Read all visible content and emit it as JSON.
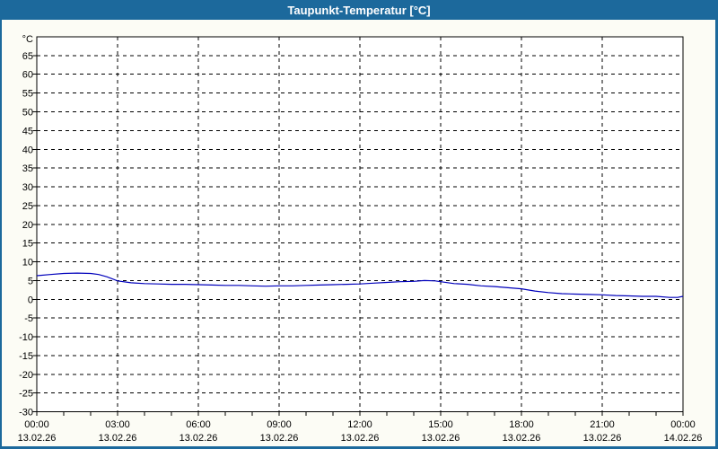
{
  "window": {
    "title": "Taupunkt-Temperatur [°C]",
    "title_bar_color": "#1C699C",
    "border_color": "#1C699C",
    "background_color": "#FCFCF5"
  },
  "chart_data": {
    "type": "line",
    "title": "Taupunkt-Temperatur [°C]",
    "y_unit_label": "°C",
    "xlabel": "",
    "ylabel": "",
    "ylim": [
      -30,
      70
    ],
    "y_tick_step": 5,
    "y_ticks": [
      65,
      60,
      55,
      50,
      45,
      40,
      35,
      30,
      25,
      20,
      15,
      10,
      5,
      0,
      -5,
      -10,
      -15,
      -20,
      -25,
      -30
    ],
    "x_span_hours": 24,
    "x_major_step_hours": 3,
    "x_minor_step_hours": 1,
    "x_tick_labels": [
      {
        "time": "00:00",
        "date": "13.02.26"
      },
      {
        "time": "03:00",
        "date": "13.02.26"
      },
      {
        "time": "06:00",
        "date": "13.02.26"
      },
      {
        "time": "09:00",
        "date": "13.02.26"
      },
      {
        "time": "12:00",
        "date": "13.02.26"
      },
      {
        "time": "15:00",
        "date": "13.02.26"
      },
      {
        "time": "18:00",
        "date": "13.02.26"
      },
      {
        "time": "21:00",
        "date": "13.02.26"
      },
      {
        "time": "00:00",
        "date": "14.02.26"
      }
    ],
    "grid": "dashed",
    "grid_color": "#000000",
    "plot_background": "#FFFFFF",
    "line_color": "#0000BB",
    "legend": "none",
    "series": [
      {
        "name": "Taupunkt-Temperatur",
        "points": [
          [
            0,
            6.3
          ],
          [
            0.5,
            6.6
          ],
          [
            1,
            6.9
          ],
          [
            1.5,
            7.0
          ],
          [
            2,
            6.9
          ],
          [
            2.3,
            6.6
          ],
          [
            2.6,
            6.0
          ],
          [
            3,
            4.9
          ],
          [
            3.5,
            4.4
          ],
          [
            4,
            4.2
          ],
          [
            4.5,
            4.1
          ],
          [
            5,
            4.0
          ],
          [
            5.5,
            4.0
          ],
          [
            6,
            3.9
          ],
          [
            6.5,
            3.8
          ],
          [
            7,
            3.7
          ],
          [
            7.5,
            3.7
          ],
          [
            8,
            3.6
          ],
          [
            8.5,
            3.5
          ],
          [
            9,
            3.6
          ],
          [
            9.5,
            3.6
          ],
          [
            10,
            3.7
          ],
          [
            10.5,
            3.8
          ],
          [
            11,
            3.9
          ],
          [
            11.5,
            4.0
          ],
          [
            12,
            4.1
          ],
          [
            12.5,
            4.3
          ],
          [
            13,
            4.5
          ],
          [
            13.5,
            4.7
          ],
          [
            14,
            4.8
          ],
          [
            14.4,
            5.0
          ],
          [
            14.8,
            4.9
          ],
          [
            15,
            4.7
          ],
          [
            15.5,
            4.2
          ],
          [
            16,
            4.0
          ],
          [
            16.5,
            3.6
          ],
          [
            17,
            3.4
          ],
          [
            17.5,
            3.1
          ],
          [
            18,
            2.8
          ],
          [
            18.5,
            2.2
          ],
          [
            19,
            1.8
          ],
          [
            19.5,
            1.5
          ],
          [
            20,
            1.4
          ],
          [
            20.5,
            1.3
          ],
          [
            21,
            1.2
          ],
          [
            21.5,
            1.0
          ],
          [
            22,
            0.9
          ],
          [
            22.5,
            0.8
          ],
          [
            23,
            0.8
          ],
          [
            23.5,
            0.5
          ],
          [
            23.8,
            0.5
          ],
          [
            24,
            0.8
          ]
        ]
      }
    ]
  }
}
